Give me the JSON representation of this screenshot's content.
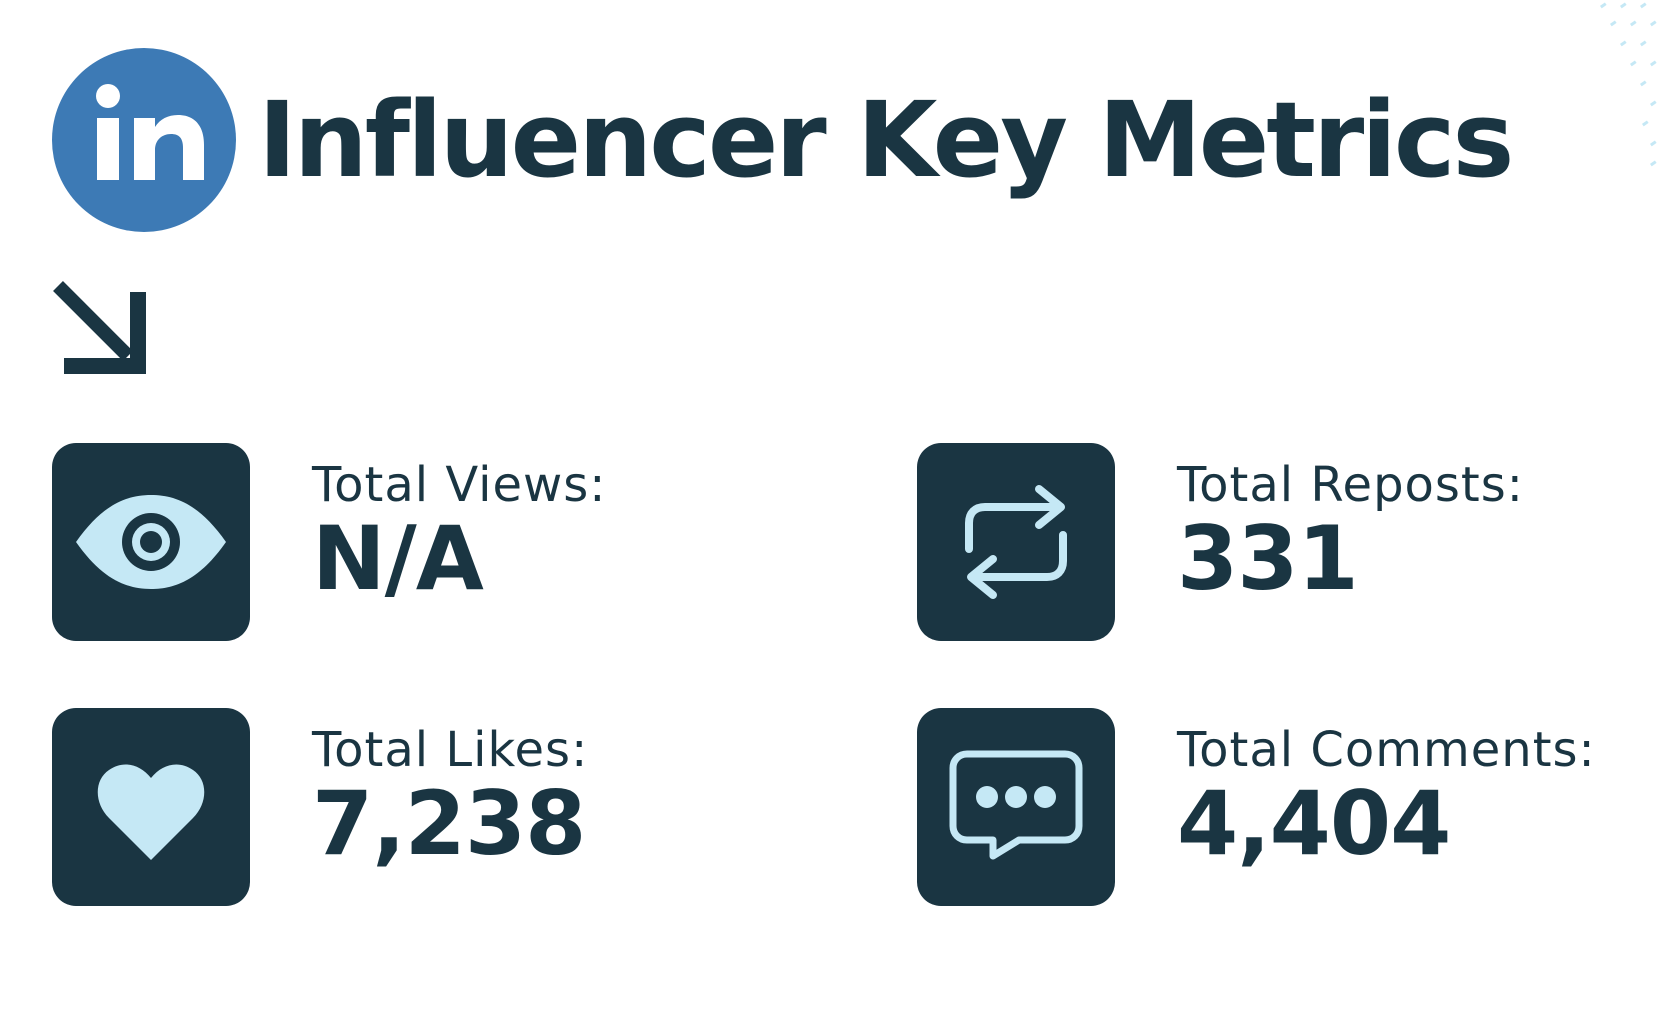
{
  "header": {
    "logo_text": "in",
    "title": "Influencer Key Metrics"
  },
  "metrics": [
    {
      "label": "Total Views:",
      "value": "N/A",
      "icon": "eye-icon"
    },
    {
      "label": "Total Reposts:",
      "value": "331",
      "icon": "repost-icon"
    },
    {
      "label": "Total Likes:",
      "value": "7,238",
      "icon": "heart-icon"
    },
    {
      "label": "Total Comments:",
      "value": "4,404",
      "icon": "comment-icon"
    }
  ],
  "colors": {
    "primary": "#1a3542",
    "icon_fill": "#c5e8f5",
    "logo_blue": "#3d7ab5",
    "background": "#ffffff"
  }
}
